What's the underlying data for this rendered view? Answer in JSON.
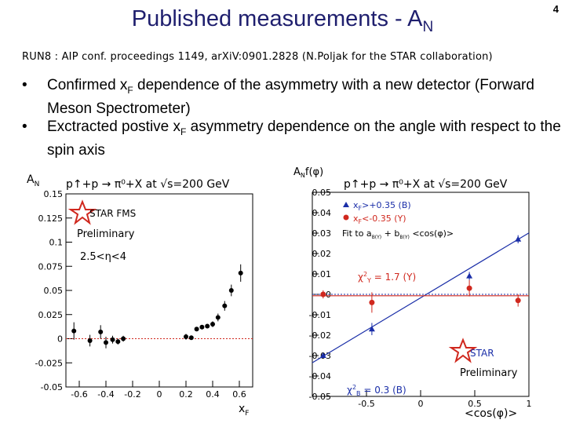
{
  "slide": {
    "title_main": "Published measurements - A",
    "title_sub": "N",
    "page_number": "4",
    "reference": "RUN8 : AIP conf. proceedings 1149, arXiV:0901.2828 (N.Poljak for the STAR collaboration)"
  },
  "bullets": [
    {
      "pre": "Confirmed x",
      "sub": "F",
      "post": " dependence of the asymmetry with a new detector (Forward Meson Spectrometer)"
    },
    {
      "pre": "Exctracted postive x",
      "sub": "F",
      "post": " asymmetry dependence on the angle with respect to the spin axis"
    }
  ],
  "colors": {
    "title": "#1f1f6e",
    "series_b": "#1a2ea8",
    "series_y": "#d0281e",
    "star_badge": "#d0281e"
  },
  "chart_data": [
    {
      "type": "scatter",
      "title": "p↑+p → π⁰+X at √s=200 GeV",
      "ylabel": "A_N",
      "xlabel": "x_F",
      "xlim": [
        -0.7,
        0.7
      ],
      "ylim": [
        -0.05,
        0.15
      ],
      "xticks": [
        "-0.6",
        "-0.4",
        "-0.2",
        "0",
        "0.2",
        "0.4",
        "0.6"
      ],
      "yticks": [
        "0.15",
        "0.125",
        "0.1",
        "0.075",
        "0.05",
        "0.025",
        "0",
        "-0.025",
        "-0.05"
      ],
      "annotations": [
        "STAR FMS",
        "Preliminary",
        "2.5<η<4"
      ],
      "series": [
        {
          "points": [
            {
              "x": -0.64,
              "y": 0.008,
              "err": 0.009
            },
            {
              "x": -0.52,
              "y": -0.002,
              "err": 0.006
            },
            {
              "x": -0.44,
              "y": 0.007,
              "err": 0.007
            },
            {
              "x": -0.4,
              "y": -0.004,
              "err": 0.006
            },
            {
              "x": -0.35,
              "y": -0.001,
              "err": 0.004
            },
            {
              "x": -0.31,
              "y": -0.003,
              "err": 0.003
            },
            {
              "x": -0.27,
              "y": 0.0,
              "err": 0.003
            },
            {
              "x": 0.2,
              "y": 0.002,
              "err": 0.003
            },
            {
              "x": 0.24,
              "y": 0.001,
              "err": 0.002
            },
            {
              "x": 0.28,
              "y": 0.01,
              "err": 0.002
            },
            {
              "x": 0.32,
              "y": 0.012,
              "err": 0.002
            },
            {
              "x": 0.36,
              "y": 0.013,
              "err": 0.002
            },
            {
              "x": 0.4,
              "y": 0.015,
              "err": 0.003
            },
            {
              "x": 0.44,
              "y": 0.022,
              "err": 0.004
            },
            {
              "x": 0.49,
              "y": 0.034,
              "err": 0.005
            },
            {
              "x": 0.54,
              "y": 0.05,
              "err": 0.006
            },
            {
              "x": 0.61,
              "y": 0.068,
              "err": 0.009
            }
          ]
        }
      ],
      "reference_line_y": 0
    },
    {
      "type": "scatter",
      "title": "p↑+p → π⁰+X at √s=200 GeV",
      "ylabel": "A_N f(φ)",
      "xlabel": "<cos(φ)>",
      "xlim": [
        -1,
        1
      ],
      "ylim": [
        -0.05,
        0.05
      ],
      "xticks": [
        "-0.5",
        "0",
        "0.5",
        "1"
      ],
      "yticks": [
        "0.05",
        "0.04",
        "0.03",
        "0.02",
        "0.01",
        "0",
        "-0.01",
        "-0.02",
        "-0.03",
        "-0.04",
        "-0.05"
      ],
      "legend": [
        {
          "label": "x_F>+0.35 (B)",
          "color": "#1a2ea8",
          "marker": "triangle"
        },
        {
          "label": "x_F<-0.35 (Y)",
          "color": "#d0281e",
          "marker": "circle"
        },
        {
          "label": "Fit to a_B(Y) + b_B(Y) <cos(φ)>",
          "color": "#000000",
          "marker": "none"
        }
      ],
      "annotations": [
        "χ²_Y = 1.7 (Y)",
        "χ²_B = 0.3 (B)",
        "STAR",
        "Preliminary"
      ],
      "series": [
        {
          "name": "x_F>+0.35 (B)",
          "points": [
            {
              "x": -0.9,
              "y": -0.03,
              "err": 0.001
            },
            {
              "x": -0.45,
              "y": -0.017,
              "err": 0.003
            },
            {
              "x": 0.45,
              "y": 0.009,
              "err": 0.002
            },
            {
              "x": 0.9,
              "y": 0.027,
              "err": 0.002
            }
          ],
          "fit": {
            "intercept": -0.0017,
            "slope": 0.0318
          }
        },
        {
          "name": "x_F<-0.35 (Y)",
          "points": [
            {
              "x": -0.9,
              "y": 0.0,
              "err": 0.002
            },
            {
              "x": -0.45,
              "y": -0.004,
              "err": 0.005
            },
            {
              "x": 0.45,
              "y": 0.003,
              "err": 0.004
            },
            {
              "x": 0.9,
              "y": -0.003,
              "err": 0.003
            }
          ],
          "fit": {
            "intercept": -0.0007,
            "slope": 0.0
          }
        }
      ],
      "reference_line_y": 0
    }
  ]
}
